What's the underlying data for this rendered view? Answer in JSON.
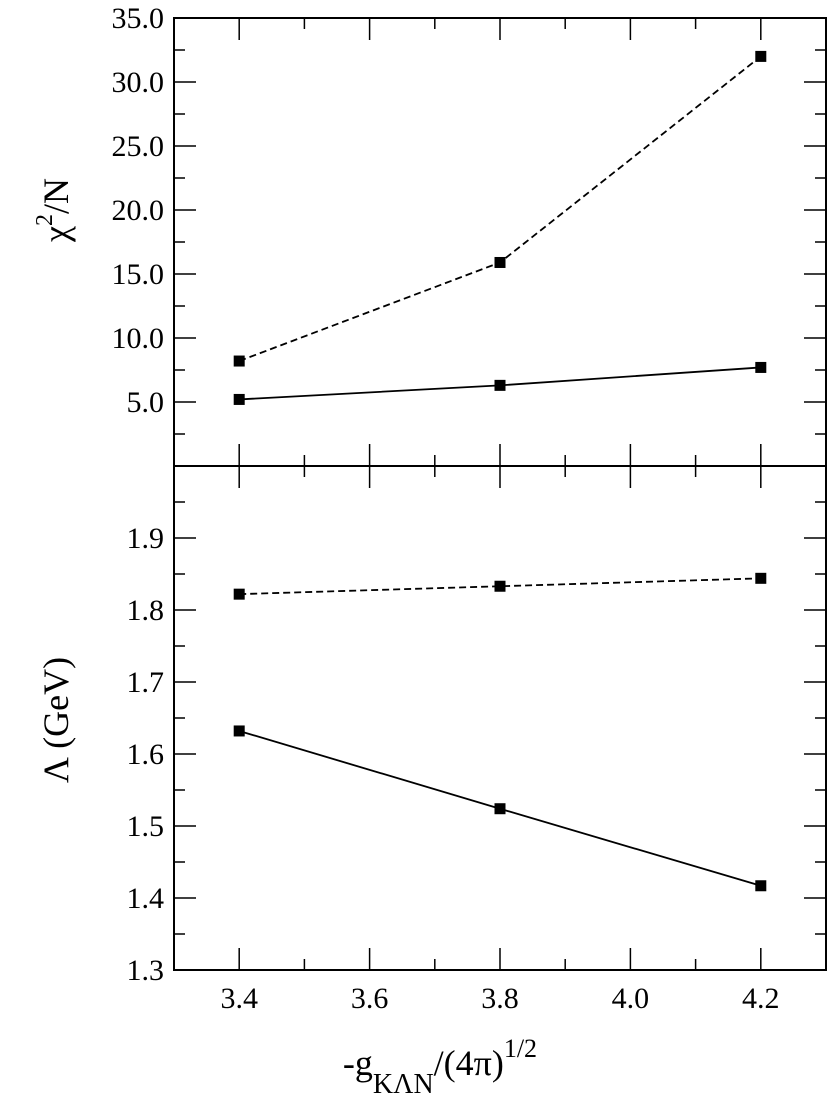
{
  "chart_data": [
    {
      "type": "line",
      "ylabel": {
        "main": "χ",
        "sup": "2",
        "rest": "/N"
      },
      "x": [
        3.4,
        3.8,
        4.2
      ],
      "series": [
        {
          "color": "#000000",
          "dash": true,
          "values": [
            8.2,
            15.9,
            32.0
          ]
        },
        {
          "color": "#000000",
          "dash": false,
          "values": [
            5.2,
            6.3,
            7.7
          ]
        }
      ],
      "xlim": [
        3.3,
        4.3
      ],
      "xticks": [
        3.4,
        3.6,
        3.8,
        4.0,
        4.2
      ],
      "xminorticks": [
        3.3,
        3.5,
        3.7,
        3.9,
        4.1,
        4.3
      ],
      "ylim": [
        0,
        35
      ],
      "yticks": [
        {
          "value": 5,
          "label": "5.0"
        },
        {
          "value": 10,
          "label": "10.0"
        },
        {
          "value": 15,
          "label": "15.0"
        },
        {
          "value": 20,
          "label": "20.0"
        },
        {
          "value": 25,
          "label": "25.0"
        },
        {
          "value": 30,
          "label": "30.0"
        },
        {
          "value": 35,
          "label": "35.0"
        }
      ],
      "yminorticks": [
        2.5,
        7.5,
        12.5,
        17.5,
        22.5,
        27.5,
        32.5
      ]
    },
    {
      "type": "line",
      "ylabel": {
        "main": "Λ (GeV)"
      },
      "xlabel": {
        "main": "-g",
        "sub": "KΛN",
        "rest": "/(4π)",
        "sup": "1/2"
      },
      "x": [
        3.4,
        3.8,
        4.2
      ],
      "series": [
        {
          "color": "#000000",
          "dash": true,
          "values": [
            1.822,
            1.833,
            1.844
          ]
        },
        {
          "color": "#000000",
          "dash": false,
          "values": [
            1.632,
            1.524,
            1.417
          ]
        }
      ],
      "xlim": [
        3.3,
        4.3
      ],
      "xticks": [
        3.4,
        3.6,
        3.8,
        {
          "value": 4,
          "label": "4.0"
        },
        4.2
      ],
      "xminorticks": [
        3.3,
        3.5,
        3.7,
        3.9,
        4.1,
        4.3
      ],
      "ylim": [
        1.3,
        2.0
      ],
      "yticks": [
        1.3,
        1.4,
        1.5,
        1.6,
        1.7,
        1.8,
        1.9
      ],
      "yminorticks": [
        1.35,
        1.45,
        1.55,
        1.65,
        1.75,
        1.85,
        1.95
      ]
    }
  ]
}
